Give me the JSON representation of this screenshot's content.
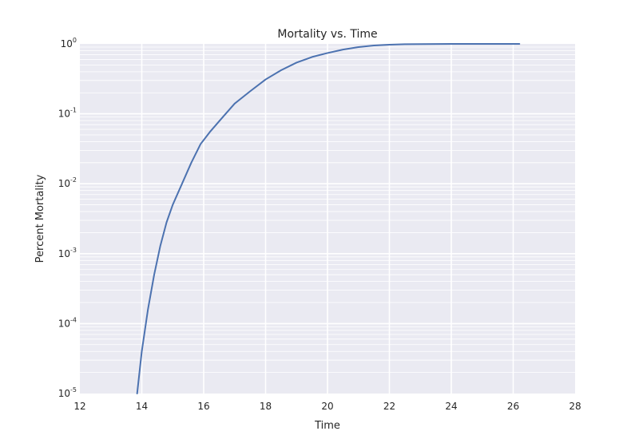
{
  "chart_data": {
    "type": "line",
    "title": "Mortality vs. Time",
    "xlabel": "Time",
    "ylabel": "Percent Mortality",
    "xlim": [
      12,
      28
    ],
    "ylim": [
      1e-05,
      1
    ],
    "yscale": "log",
    "grid": true,
    "background": "#EAEAF2",
    "grid_color": "#FFFFFF",
    "line_color": "#4C72B0",
    "x_ticks": [
      "12",
      "14",
      "16",
      "18",
      "20",
      "22",
      "24",
      "26",
      "28"
    ],
    "y_ticks": [
      {
        "base": "10",
        "exp": "-5"
      },
      {
        "base": "10",
        "exp": "-4"
      },
      {
        "base": "10",
        "exp": "-3"
      },
      {
        "base": "10",
        "exp": "-2"
      },
      {
        "base": "10",
        "exp": "-1"
      },
      {
        "base": "10",
        "exp": "0"
      }
    ],
    "series": [
      {
        "x": [
          13.85,
          14.0,
          14.2,
          14.4,
          14.6,
          14.8,
          15.0,
          15.3,
          15.6,
          15.9,
          16.2,
          16.6,
          17.0,
          17.5,
          18.0,
          18.5,
          19.0,
          19.5,
          20.0,
          20.5,
          21.0,
          21.5,
          22.0,
          22.5,
          23.0,
          24.0,
          25.0,
          26.2
        ],
        "y": [
          1e-05,
          4e-05,
          0.00016,
          0.0005,
          0.0013,
          0.0028,
          0.005,
          0.01,
          0.02,
          0.037,
          0.055,
          0.088,
          0.14,
          0.21,
          0.31,
          0.42,
          0.54,
          0.65,
          0.74,
          0.83,
          0.9,
          0.95,
          0.975,
          0.99,
          0.995,
          0.999,
          1.0,
          1.0
        ]
      }
    ]
  }
}
